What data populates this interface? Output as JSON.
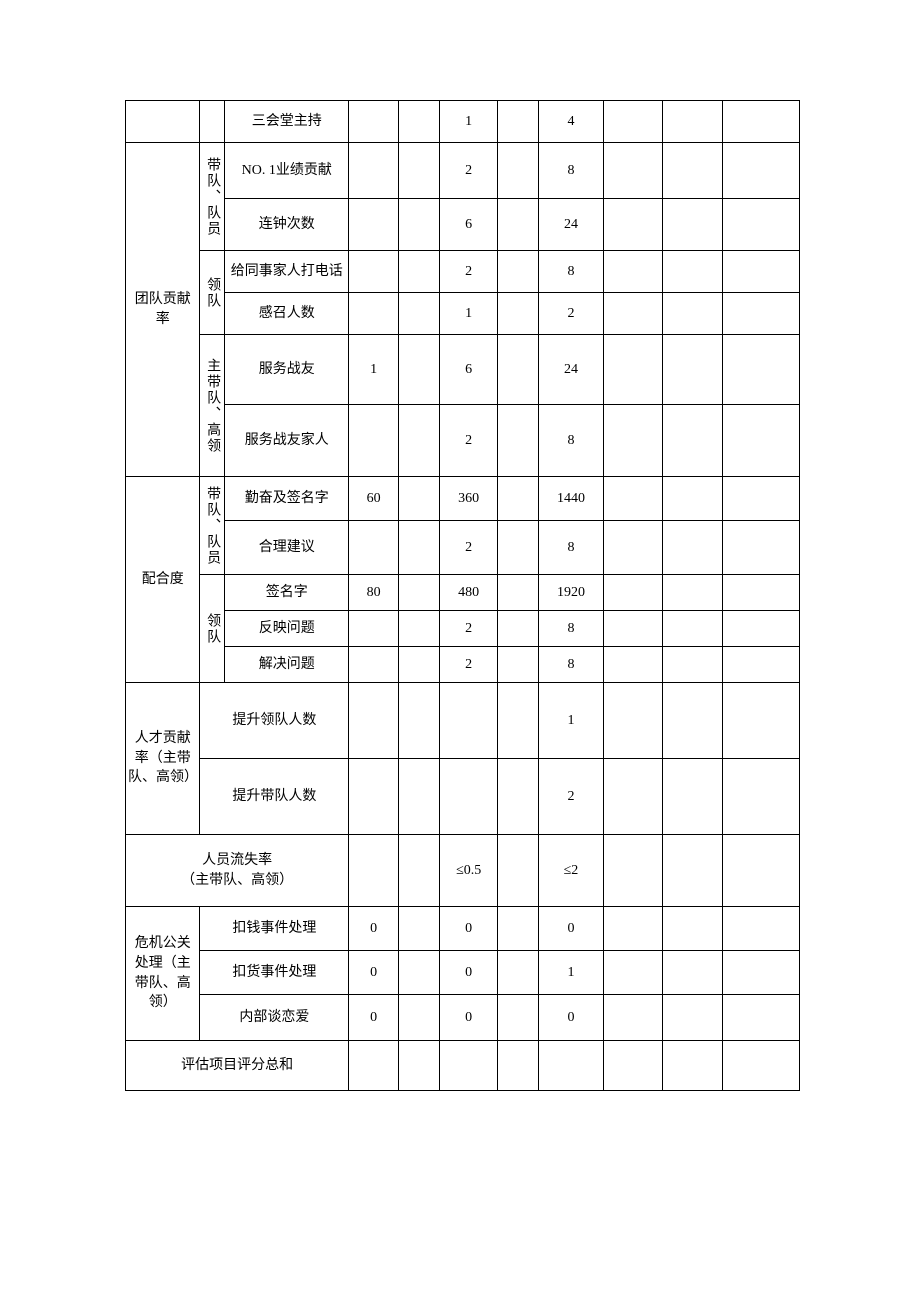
{
  "table": {
    "border_color": "#000000",
    "background_color": "#ffffff",
    "text_color": "#000000",
    "font_size_pt": 10.5,
    "rows": [
      {
        "id": "r1",
        "item": "三会堂主持",
        "c1": "",
        "c3": "1",
        "c5": "4"
      },
      {
        "id": "r2",
        "cat": "团队贡献率",
        "sub": "带队、队员",
        "item": "NO. 1业绩贡献",
        "c1": "",
        "c3": "2",
        "c5": "8"
      },
      {
        "id": "r3",
        "item": "连钟次数",
        "c1": "",
        "c3": "6",
        "c5": "24"
      },
      {
        "id": "r4",
        "sub": "领队",
        "item": "给同事家人打电话",
        "c1": "",
        "c3": "2",
        "c5": "8"
      },
      {
        "id": "r5",
        "item": "感召人数",
        "c1": "",
        "c3": "1",
        "c5": "2"
      },
      {
        "id": "r6",
        "sub": "主带队、高领",
        "item": "服务战友",
        "c1": "1",
        "c3": "6",
        "c5": "24"
      },
      {
        "id": "r7",
        "item": "服务战友家人",
        "c1": "",
        "c3": "2",
        "c5": "8"
      },
      {
        "id": "r8",
        "cat": "配合度",
        "sub": "带队、队员",
        "item": "勤奋及签名字",
        "c1": "60",
        "c3": "360",
        "c5": "1440"
      },
      {
        "id": "r9",
        "item": "合理建议",
        "c1": "",
        "c3": "2",
        "c5": "8"
      },
      {
        "id": "r10",
        "sub": "领队",
        "item": "签名字",
        "c1": "80",
        "c3": "480",
        "c5": "1920"
      },
      {
        "id": "r11",
        "item": "反映问题",
        "c1": "",
        "c3": "2",
        "c5": "8"
      },
      {
        "id": "r12",
        "item": "解决问题",
        "c1": "",
        "c3": "2",
        "c5": "8"
      },
      {
        "id": "r13",
        "cat": "人才贡献率（主带队、高领）",
        "item": "提升领队人数",
        "c1": "",
        "c3": "",
        "c5": "1"
      },
      {
        "id": "r14",
        "item": "提升带队人数",
        "c1": "",
        "c3": "",
        "c5": "2"
      },
      {
        "id": "r15",
        "cat_item": "人员流失率\n（主带队、高领）",
        "c1": "",
        "c3": "≤0.5",
        "c5": "≤2"
      },
      {
        "id": "r16",
        "cat": "危机公关处理（主带队、高领）",
        "item": "扣钱事件处理",
        "c1": "0",
        "c3": "0",
        "c5": "0"
      },
      {
        "id": "r17",
        "item": "扣货事件处理",
        "c1": "0",
        "c3": "0",
        "c5": "1"
      },
      {
        "id": "r18",
        "item": "内部谈恋爱",
        "c1": "0",
        "c3": "0",
        "c5": "0"
      },
      {
        "id": "r19",
        "cat_item": "评估项目评分总和",
        "c1": "",
        "c3": "",
        "c5": ""
      }
    ]
  }
}
